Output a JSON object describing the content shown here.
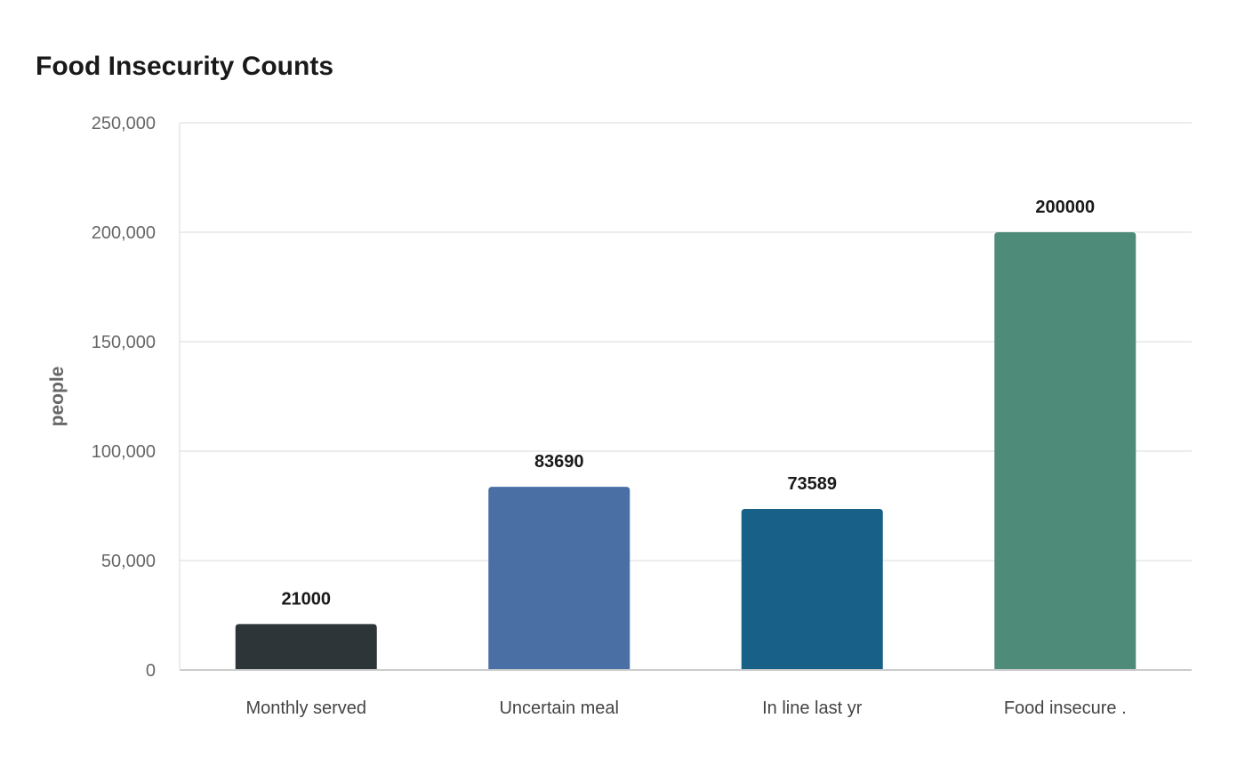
{
  "chart_data": {
    "type": "bar",
    "title": "Food Insecurity Counts",
    "xlabel": "",
    "ylabel": "people",
    "categories": [
      "Monthly served",
      "Uncertain meal",
      "In line last yr",
      "Food insecure ."
    ],
    "values": [
      21000,
      83690,
      73589,
      200000
    ],
    "data_labels": [
      "21000",
      "83690",
      "73589",
      "200000"
    ],
    "bar_colors": [
      "#2d3538",
      "#4a6fa5",
      "#186088",
      "#4e8b79"
    ],
    "ylim": [
      0,
      250000
    ],
    "yticks": [
      0,
      50000,
      100000,
      150000,
      200000,
      250000
    ],
    "ytick_labels": [
      "0",
      "50,000",
      "100,000",
      "150,000",
      "200,000",
      "250,000"
    ],
    "grid": true,
    "legend": "none"
  }
}
